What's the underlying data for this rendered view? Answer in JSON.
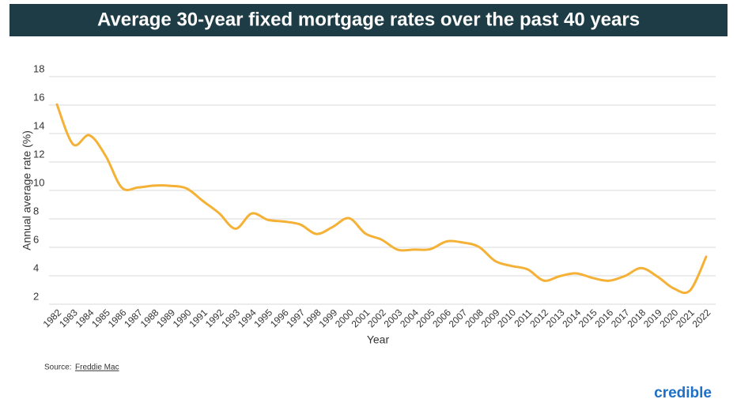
{
  "chart_data": {
    "type": "line",
    "title": "Average 30-year fixed mortgage rates over the past 40 years",
    "x_label": "Year",
    "y_label": "Annual average rate (%)",
    "source_prefix": "Source:",
    "source": "Freddie Mac",
    "brand": "credible",
    "categories": [
      "1982",
      "1983",
      "1984",
      "1985",
      "1986",
      "1987",
      "1988",
      "1989",
      "1990",
      "1991",
      "1992",
      "1993",
      "1994",
      "1995",
      "1996",
      "1997",
      "1998",
      "1999",
      "2000",
      "2001",
      "2002",
      "2003",
      "2004",
      "2005",
      "2006",
      "2007",
      "2008",
      "2009",
      "2010",
      "2011",
      "2012",
      "2013",
      "2014",
      "2015",
      "2016",
      "2017",
      "2018",
      "2019",
      "2020",
      "2021",
      "2022"
    ],
    "series": [
      {
        "name": "Annual average rate",
        "color": "#f4b135",
        "values": [
          16.04,
          13.24,
          13.88,
          12.43,
          10.19,
          10.21,
          10.34,
          10.32,
          10.13,
          9.25,
          8.39,
          7.31,
          8.38,
          7.93,
          7.81,
          7.6,
          6.94,
          7.44,
          8.05,
          6.97,
          6.54,
          5.83,
          5.84,
          5.87,
          6.41,
          6.34,
          6.03,
          5.04,
          4.69,
          4.45,
          3.66,
          3.98,
          4.17,
          3.85,
          3.65,
          3.99,
          4.54,
          3.94,
          3.11,
          2.96,
          5.34
        ]
      }
    ],
    "ylim": [
      2,
      18
    ],
    "yticks": [
      2,
      4,
      6,
      8,
      10,
      12,
      14,
      16,
      18
    ],
    "grid": true
  }
}
